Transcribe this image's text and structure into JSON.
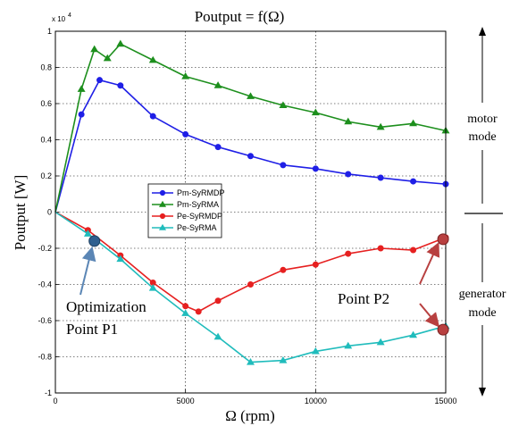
{
  "chart_data": {
    "type": "line",
    "title": "Poutput = f(Ω)",
    "xlabel": "Ω (rpm)",
    "ylabel": "Poutput [W]",
    "y_exponent_label": "x 10",
    "y_exponent_power": "4",
    "xlim": [
      0,
      15000
    ],
    "ylim": [
      -1,
      1
    ],
    "grid": true,
    "x_ticks": [
      0,
      5000,
      10000,
      15000
    ],
    "x_tick_labels": [
      "0",
      "5000",
      "10000",
      "15000"
    ],
    "y_ticks": [
      -1,
      -0.8,
      -0.6,
      -0.4,
      -0.2,
      0,
      0.2,
      0.4,
      0.6,
      0.8,
      1
    ],
    "y_tick_labels": [
      "-1",
      "-0.8",
      "-0.6",
      "-0.4",
      "-0.2",
      "0",
      "0.2",
      "0.4",
      "0.6",
      "0.8",
      "1"
    ],
    "legend_position": "center-left",
    "series": [
      {
        "name": "Pm-SyRMDP",
        "color": "#1f1fe6",
        "marker": "circle",
        "x": [
          0,
          1000,
          1700,
          2500,
          3750,
          5000,
          6250,
          7500,
          8750,
          10000,
          11250,
          12500,
          13750,
          15000
        ],
        "y": [
          0,
          0.54,
          0.73,
          0.7,
          0.53,
          0.43,
          0.36,
          0.31,
          0.26,
          0.24,
          0.21,
          0.19,
          0.17,
          0.155
        ]
      },
      {
        "name": "Pm-SyRMA",
        "color": "#1d8f1d",
        "marker": "triangle",
        "x": [
          0,
          1000,
          1500,
          2000,
          2500,
          3750,
          5000,
          6250,
          7500,
          8750,
          10000,
          11250,
          12500,
          13750,
          15000
        ],
        "y": [
          0,
          0.68,
          0.9,
          0.85,
          0.93,
          0.84,
          0.75,
          0.7,
          0.64,
          0.59,
          0.55,
          0.5,
          0.47,
          0.49,
          0.45
        ]
      },
      {
        "name": "Pe-SyRMDP",
        "color": "#e62020",
        "marker": "circle",
        "x": [
          0,
          1250,
          2500,
          3750,
          5000,
          5500,
          6250,
          7500,
          8750,
          10000,
          11250,
          12500,
          13750,
          15000
        ],
        "y": [
          0,
          -0.1,
          -0.24,
          -0.39,
          -0.52,
          -0.55,
          -0.49,
          -0.4,
          -0.32,
          -0.29,
          -0.23,
          -0.2,
          -0.21,
          -0.14
        ]
      },
      {
        "name": "Pe-SyRMA",
        "color": "#20bcbc",
        "marker": "triangle",
        "x": [
          0,
          1250,
          2500,
          3750,
          5000,
          6250,
          7500,
          8750,
          10000,
          11250,
          12500,
          13750,
          15000
        ],
        "y": [
          0,
          -0.12,
          -0.26,
          -0.42,
          -0.56,
          -0.69,
          -0.83,
          -0.82,
          -0.77,
          -0.74,
          -0.72,
          -0.68,
          -0.63
        ]
      }
    ],
    "annotations": [
      {
        "label": "Optimization",
        "label2": "Point P1",
        "point_x": 1500,
        "point_y": -0.16,
        "point_color": "#2e5f8f",
        "arrow_color": "#5b86b5"
      },
      {
        "label": "Point P2",
        "targets": [
          {
            "x": 14900,
            "y": -0.15
          },
          {
            "x": 14900,
            "y": -0.65
          }
        ],
        "point_color": "#b84040",
        "arrow_color": "#b84040"
      }
    ],
    "side_labels": {
      "motor_1": "motor",
      "motor_2": "mode",
      "generator_1": "generator",
      "generator_2": "mode"
    }
  }
}
